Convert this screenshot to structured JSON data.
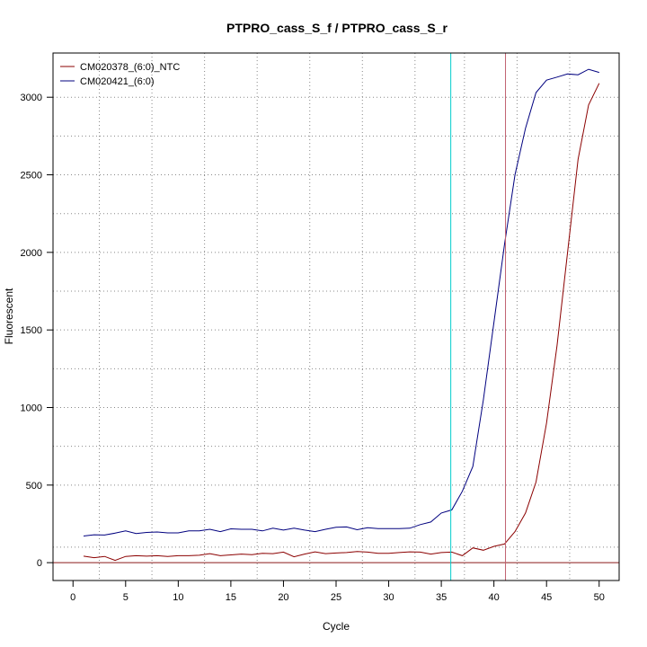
{
  "chart_data": {
    "type": "line",
    "title": "PTPRO_cass_S_f / PTPRO_cass_S_r",
    "xlabel": "Cycle",
    "ylabel": "Fluorescent",
    "xlim": [
      -1.9,
      51.9
    ],
    "ylim": [
      -115,
      3285
    ],
    "xticks": [
      0,
      5,
      10,
      15,
      20,
      25,
      30,
      35,
      40,
      45,
      50
    ],
    "yticks": [
      0,
      500,
      1000,
      1500,
      2000,
      2500,
      3000
    ],
    "grid": true,
    "grid_x_dotted": [
      2.5,
      7.5,
      12.5,
      17.5,
      22.5,
      27.5,
      32.5,
      37.2,
      42.2,
      47.2
    ],
    "grid_y_dotted": [
      100,
      500,
      750,
      1000,
      1250,
      1500,
      1750,
      2000,
      2250,
      2500,
      2750,
      3000
    ],
    "threshold_y": 0,
    "threshold_color": "#8b1a1a",
    "vlines": [
      {
        "x": 35.9,
        "color": "#00cccc"
      },
      {
        "x": 41.1,
        "color": "#c06070"
      }
    ],
    "legend_position": "top-left",
    "series": [
      {
        "name": "CM020378_(6:0)_NTC",
        "color": "#8b0000",
        "x": [
          1,
          2,
          3,
          4,
          5,
          6,
          7,
          8,
          9,
          10,
          11,
          12,
          13,
          14,
          15,
          16,
          17,
          18,
          19,
          20,
          21,
          22,
          23,
          24,
          25,
          26,
          27,
          28,
          29,
          30,
          31,
          32,
          33,
          34,
          35,
          36,
          37,
          38,
          39,
          40,
          41,
          42,
          43,
          44,
          45,
          46,
          47,
          48,
          49,
          50
        ],
        "values": [
          42,
          32,
          40,
          15,
          40,
          45,
          42,
          45,
          40,
          45,
          45,
          48,
          58,
          45,
          50,
          55,
          52,
          60,
          58,
          68,
          38,
          55,
          70,
          58,
          62,
          65,
          72,
          68,
          60,
          60,
          65,
          70,
          68,
          55,
          65,
          68,
          45,
          95,
          80,
          105,
          120,
          200,
          320,
          520,
          900,
          1400,
          2000,
          2600,
          2950,
          3090
        ]
      },
      {
        "name": "CM020421_(6:0)",
        "color": "#00007f",
        "x": [
          1,
          2,
          3,
          4,
          5,
          6,
          7,
          8,
          9,
          10,
          11,
          12,
          13,
          14,
          15,
          16,
          17,
          18,
          19,
          20,
          21,
          22,
          23,
          24,
          25,
          26,
          27,
          28,
          29,
          30,
          31,
          32,
          33,
          34,
          35,
          36,
          37,
          38,
          39,
          40,
          41,
          42,
          43,
          44,
          45,
          46,
          47,
          48,
          49,
          50
        ],
        "values": [
          172,
          180,
          178,
          190,
          205,
          188,
          195,
          198,
          192,
          192,
          205,
          205,
          215,
          200,
          218,
          215,
          215,
          205,
          222,
          210,
          222,
          210,
          200,
          215,
          228,
          230,
          212,
          225,
          220,
          220,
          220,
          222,
          245,
          262,
          320,
          340,
          460,
          620,
          1050,
          1550,
          2050,
          2500,
          2800,
          3030,
          3110,
          3130,
          3150,
          3145,
          3180,
          3160
        ]
      }
    ]
  }
}
